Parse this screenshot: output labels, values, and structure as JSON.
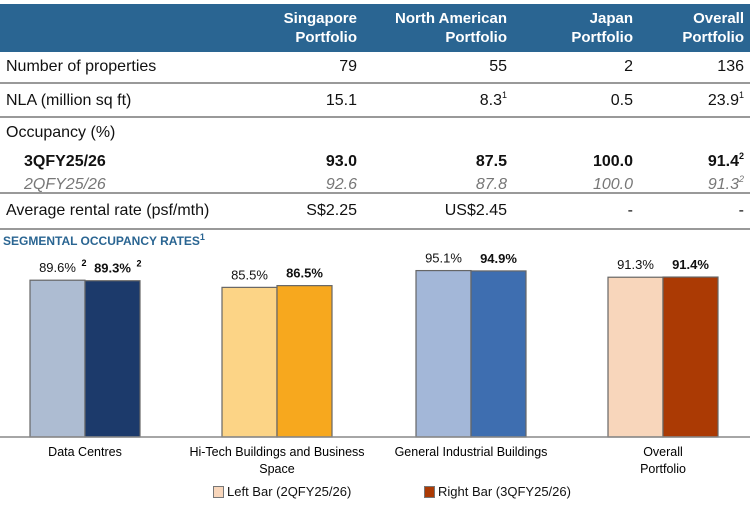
{
  "table": {
    "columns": [
      "Singapore Portfolio",
      "North American Portfolio",
      "Japan Portfolio",
      "Overall Portfolio"
    ],
    "columns_lines": [
      [
        "Singapore",
        "Portfolio"
      ],
      [
        "North American",
        "Portfolio"
      ],
      [
        "Japan",
        "Portfolio"
      ],
      [
        "Overall",
        "Portfolio"
      ]
    ],
    "rows": {
      "properties": {
        "label": "Number of properties",
        "values": [
          "79",
          "55",
          "2",
          "136"
        ],
        "notes": [
          "",
          "",
          "",
          ""
        ]
      },
      "nla": {
        "label": "NLA (million sq ft)",
        "values": [
          "15.1",
          "8.3",
          "0.5",
          "23.9"
        ],
        "notes": [
          "",
          "1",
          "",
          "1"
        ]
      },
      "occupancy_label": "Occupancy (%)",
      "q3": {
        "label": "3QFY25/26",
        "values": [
          "93.0",
          "87.5",
          "100.0",
          "91.4"
        ],
        "notes": [
          "",
          "",
          "",
          "2"
        ]
      },
      "q2": {
        "label": "2QFY25/26",
        "values": [
          "92.6",
          "87.8",
          "100.0",
          "91.3"
        ],
        "notes": [
          "",
          "",
          "",
          "2"
        ]
      },
      "rental": {
        "label": "Average rental rate (psf/mth)",
        "values": [
          "S$2.25",
          "US$2.45",
          "-",
          "-"
        ],
        "notes": [
          "",
          "",
          "",
          ""
        ]
      }
    }
  },
  "chart_data": {
    "type": "bar",
    "title": "SEGMENTAL OCCUPANCY RATES",
    "title_note": "1",
    "categories": [
      "Data Centres",
      "Hi-Tech Buildings and Business Space",
      "General Industrial Buildings",
      "Overall Portfolio"
    ],
    "category_lines": [
      [
        "Data Centres"
      ],
      [
        "Hi-Tech Buildings and Business",
        "Space"
      ],
      [
        "General Industrial Buildings"
      ],
      [
        "Overall",
        "Portfolio"
      ]
    ],
    "series": [
      {
        "name": "Left Bar (2QFY25/26)",
        "values": [
          89.6,
          85.5,
          95.1,
          91.3
        ],
        "labels": [
          "89.6%",
          "85.5%",
          "95.1%",
          "91.3%"
        ],
        "notes": [
          "2",
          "",
          "",
          ""
        ],
        "colors": [
          "#adbcd2",
          "#fcd486",
          "#a3b7d8",
          "#f8d6bb"
        ]
      },
      {
        "name": "Right Bar (3QFY25/26)",
        "values": [
          89.3,
          86.5,
          94.9,
          91.4
        ],
        "labels": [
          "89.3%",
          "86.5%",
          "94.9%",
          "91.4%"
        ],
        "notes": [
          "2",
          "",
          "",
          ""
        ],
        "colors": [
          "#1c3a6b",
          "#f7a81e",
          "#3e6eb0",
          "#ab3a04"
        ]
      }
    ],
    "legend_colors": [
      "#f8d6bb",
      "#ab3a04"
    ],
    "ylim": [
      0,
      100
    ],
    "grid": false,
    "legend": "bottom"
  }
}
